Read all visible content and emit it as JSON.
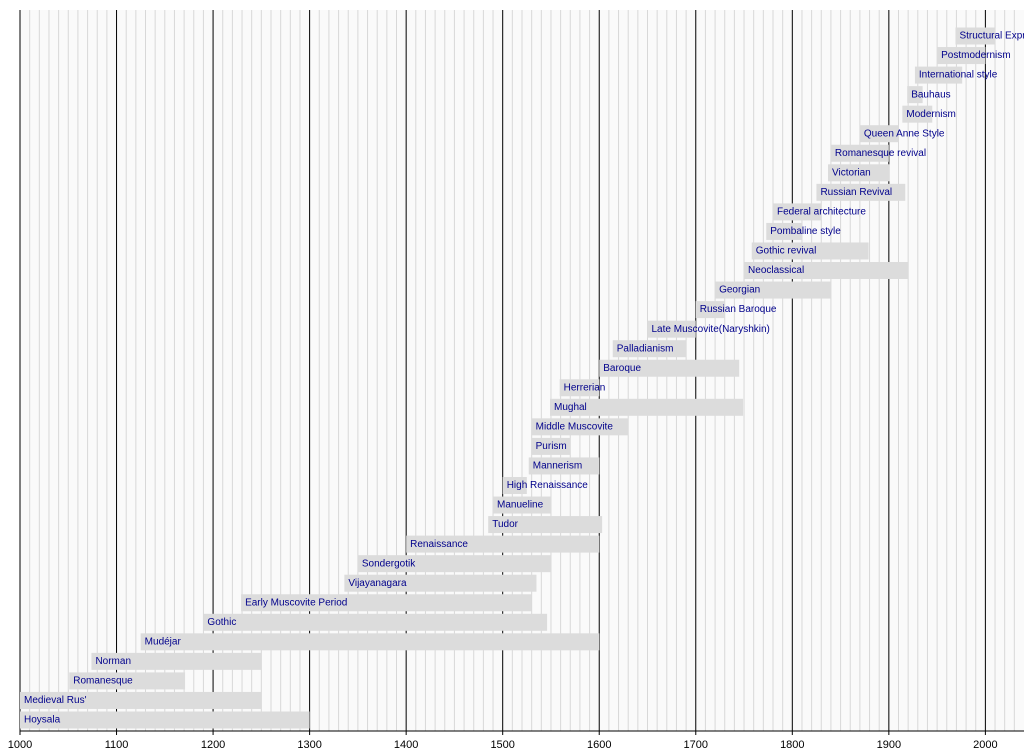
{
  "chart_data": {
    "type": "timeline",
    "tasks": [
      {
        "name": "Structural Expressionism",
        "start": 1969,
        "end": 2010
      },
      {
        "name": "Postmodernism",
        "start": 1950,
        "end": 2000
      },
      {
        "name": "International style",
        "start": 1927,
        "end": 1976
      },
      {
        "name": "Bauhaus",
        "start": 1919,
        "end": 1935
      },
      {
        "name": "Modernism",
        "start": 1914,
        "end": 1945
      },
      {
        "name": "Queen Anne Style",
        "start": 1870,
        "end": 1910
      },
      {
        "name": "Romanesque revival",
        "start": 1840,
        "end": 1900
      },
      {
        "name": "Victorian",
        "start": 1837,
        "end": 1901
      },
      {
        "name": "Russian Revival",
        "start": 1825,
        "end": 1917
      },
      {
        "name": "Federal architecture",
        "start": 1780,
        "end": 1830
      },
      {
        "name": "Pombaline style",
        "start": 1773,
        "end": 1810
      },
      {
        "name": "Gothic revival",
        "start": 1758,
        "end": 1879
      },
      {
        "name": "Neoclassical",
        "start": 1750,
        "end": 1920
      },
      {
        "name": "Georgian",
        "start": 1720,
        "end": 1840
      },
      {
        "name": "Russian Baroque",
        "start": 1700,
        "end": 1730
      },
      {
        "name": "Late Muscovite(Naryshkin)",
        "start": 1650,
        "end": 1700
      },
      {
        "name": "Palladianism",
        "start": 1614,
        "end": 1690
      },
      {
        "name": "Baroque",
        "start": 1600,
        "end": 1745
      },
      {
        "name": "Herrerian",
        "start": 1559,
        "end": 1600
      },
      {
        "name": "Mughal",
        "start": 1549,
        "end": 1749
      },
      {
        "name": "Middle Muscovite",
        "start": 1530,
        "end": 1630
      },
      {
        "name": "Purism",
        "start": 1530,
        "end": 1570
      },
      {
        "name": "Mannerism",
        "start": 1527,
        "end": 1600
      },
      {
        "name": "High Renaissance",
        "start": 1500,
        "end": 1525
      },
      {
        "name": "Manueline",
        "start": 1490,
        "end": 1550
      },
      {
        "name": "Tudor",
        "start": 1485,
        "end": 1603
      },
      {
        "name": "Renaissance",
        "start": 1400,
        "end": 1600
      },
      {
        "name": "Sondergotik",
        "start": 1350,
        "end": 1550
      },
      {
        "name": "Vijayanagara",
        "start": 1336,
        "end": 1535
      },
      {
        "name": "Early Muscovite Period",
        "start": 1229,
        "end": 1530
      },
      {
        "name": "Gothic",
        "start": 1190,
        "end": 1546
      },
      {
        "name": "Mudéjar",
        "start": 1125,
        "end": 1600
      },
      {
        "name": "Norman",
        "start": 1074,
        "end": 1250
      },
      {
        "name": "Romanesque",
        "start": 1051,
        "end": 1171
      },
      {
        "name": "Medieval Rus'",
        "start": 1000,
        "end": 1250
      },
      {
        "name": "Hoysala",
        "start": 1000,
        "end": 1300
      }
    ],
    "bar_color": "#dcdcdc",
    "label_color": "#00008b",
    "xlim": [
      1000,
      2040
    ],
    "xticks": [
      1000,
      1100,
      1200,
      1300,
      1400,
      1500,
      1600,
      1700,
      1800,
      1900,
      2000
    ],
    "xminor": [
      1010,
      1020,
      1030,
      1040,
      1050,
      1060,
      1070,
      1080,
      1090,
      1110,
      1120,
      1130,
      1140,
      1150,
      1160,
      1170,
      1180,
      1190,
      1210,
      1220,
      1230,
      1240,
      1250,
      1260,
      1270,
      1280,
      1290,
      1310,
      1320,
      1330,
      1340,
      1350,
      1360,
      1370,
      1380,
      1390,
      1410,
      1420,
      1430,
      1440,
      1450,
      1460,
      1470,
      1480,
      1490,
      1510,
      1520,
      1530,
      1540,
      1550,
      1560,
      1570,
      1580,
      1590,
      1610,
      1620,
      1630,
      1640,
      1650,
      1660,
      1670,
      1680,
      1690,
      1710,
      1720,
      1730,
      1740,
      1750,
      1760,
      1770,
      1780,
      1790,
      1810,
      1820,
      1830,
      1840,
      1850,
      1860,
      1870,
      1880,
      1890,
      1910,
      1920,
      1930,
      1940,
      1950,
      1960,
      1970,
      1980,
      1990,
      2010,
      2020,
      2030
    ],
    "grid": true
  }
}
